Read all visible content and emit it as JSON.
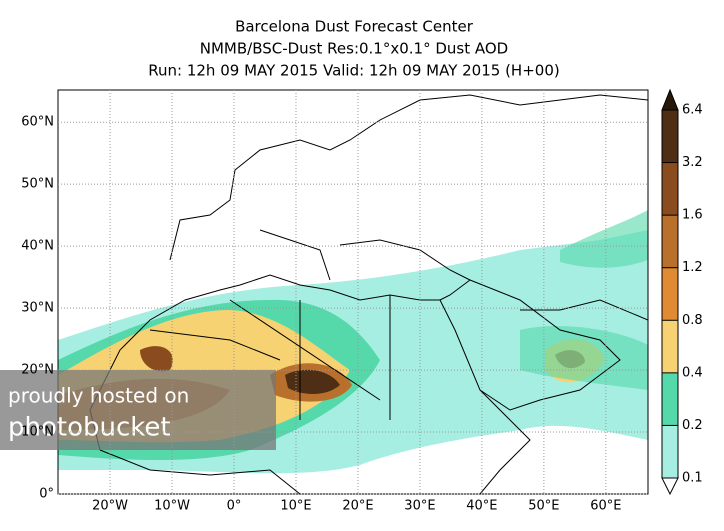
{
  "chart_data": {
    "type": "map",
    "title": [
      "Barcelona Dust Forecast Center",
      "NMMB/BSC-Dust   Res:0.1°x0.1°    Dust AOD",
      "Run: 12h 09 MAY 2015   Valid: 12h 09 MAY 2015 (H+00)"
    ],
    "xlim": [
      -28.4,
      66.8
    ],
    "ylim": [
      0,
      65.2
    ],
    "xticks": [
      {
        "value": -20,
        "label": "20°W"
      },
      {
        "value": -10,
        "label": "10°W"
      },
      {
        "value": 0,
        "label": "0°"
      },
      {
        "value": 10,
        "label": "10°E"
      },
      {
        "value": 20,
        "label": "20°E"
      },
      {
        "value": 30,
        "label": "30°E"
      },
      {
        "value": 40,
        "label": "40°E"
      },
      {
        "value": 50,
        "label": "50°E"
      },
      {
        "value": 60,
        "label": "60°E"
      }
    ],
    "yticks": [
      {
        "value": 0,
        "label": "0°"
      },
      {
        "value": 10,
        "label": "10°N"
      },
      {
        "value": 20,
        "label": "20°N"
      },
      {
        "value": 30,
        "label": "30°N"
      },
      {
        "value": 40,
        "label": "40°N"
      },
      {
        "value": 50,
        "label": "50°N"
      },
      {
        "value": 60,
        "label": "60°N"
      }
    ],
    "grid": true,
    "colorbar": {
      "levels": [
        0.1,
        0.2,
        0.4,
        0.8,
        1.2,
        1.6,
        3.2,
        6.4
      ],
      "colors": [
        "#a6eee2",
        "#55d8aa",
        "#f6d272",
        "#e08a34",
        "#b8702c",
        "#8a4c1e",
        "#4e2e14"
      ],
      "under_color": "#ffffff",
      "over_color": "#261709"
    },
    "watermark": [
      "proudly hosted on",
      "photobucket"
    ]
  }
}
